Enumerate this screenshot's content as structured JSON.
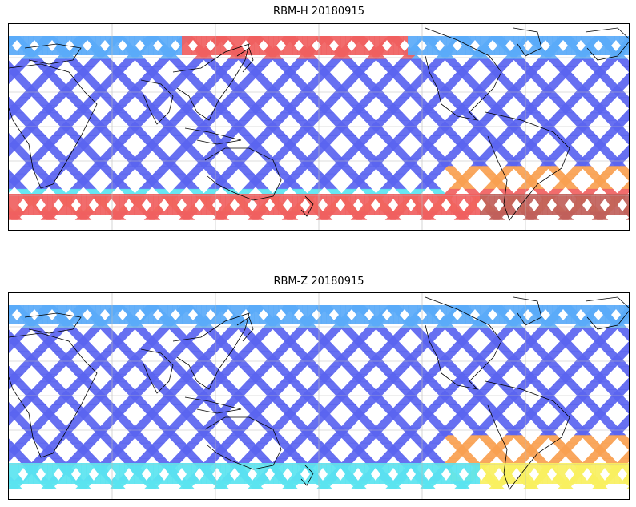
{
  "panels": [
    {
      "title": "RBM-H 20180915",
      "palette": "high-dose"
    },
    {
      "title": "RBM-Z 20180915",
      "palette": "low-dose"
    }
  ],
  "colors": {
    "blue": "#5a64f0",
    "light_blue": "#5aaaf8",
    "cyan": "#5ae4f0",
    "green": "#a4f48a",
    "yellow": "#f8f060",
    "orange": "#f8a050",
    "red": "#f06060",
    "dark_red": "#c0605a",
    "coast": "#000000",
    "grid": "#bbbbbb"
  },
  "icons": [
    "coastline-map",
    "lat-lon-gridlines"
  ]
}
